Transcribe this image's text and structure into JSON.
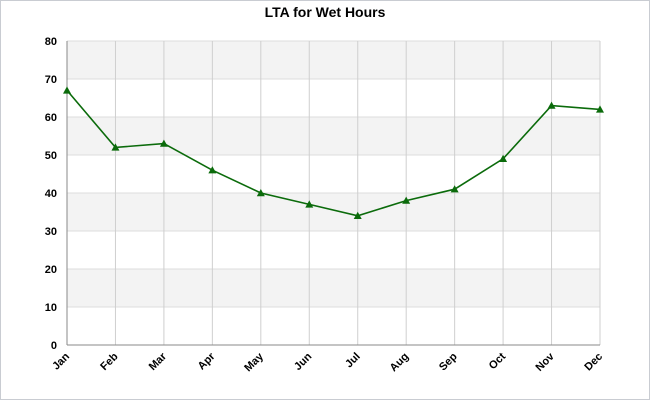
{
  "chart_data": {
    "type": "line",
    "title": "LTA for Wet Hours",
    "xlabel": "",
    "ylabel": "",
    "categories": [
      "Jan",
      "Feb",
      "Mar",
      "Apr",
      "May",
      "Jun",
      "Jul",
      "Aug",
      "Sep",
      "Oct",
      "Nov",
      "Dec"
    ],
    "series": [
      {
        "values": [
          67,
          52,
          53,
          46,
          40,
          37,
          34,
          38,
          41,
          49,
          63,
          62
        ],
        "color": "#0b6b0b",
        "marker": "triangle"
      }
    ],
    "ylim": [
      0,
      80
    ],
    "yticks": [
      "0",
      "10",
      "20",
      "30",
      "40",
      "50",
      "60",
      "70",
      "80"
    ],
    "grid": true,
    "band_colors": [
      "#f3f3f3",
      "#ffffff"
    ]
  }
}
